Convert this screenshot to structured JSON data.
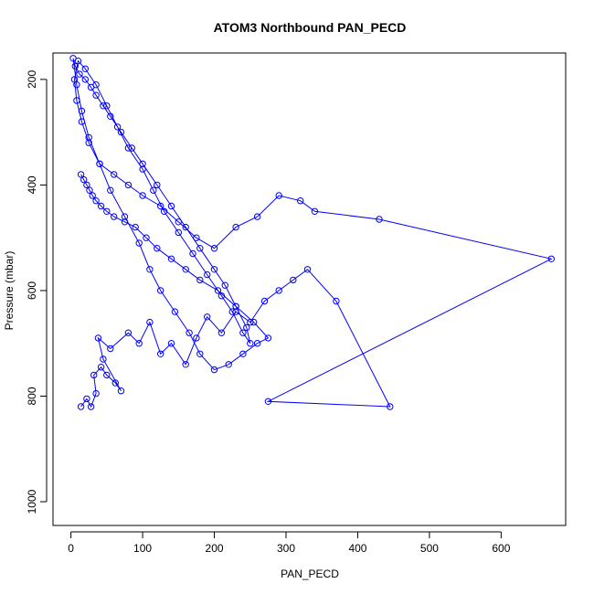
{
  "chart_data": {
    "type": "line",
    "title": "ATOM3 Northbound PAN_PECD",
    "xlabel": "PAN_PECD",
    "ylabel": "Pressure (mbar)",
    "xlim": [
      -25,
      690
    ],
    "ylim": [
      1045,
      150
    ],
    "y_reversed": true,
    "x_ticks": [
      0,
      100,
      200,
      300,
      400,
      500,
      600
    ],
    "y_ticks": [
      200,
      400,
      600,
      800,
      1000
    ],
    "grid": false,
    "legend": "none",
    "color": "#0000ff",
    "markers": "open-circle",
    "series": [
      {
        "x": [
          14,
          22,
          28,
          35,
          32,
          42,
          50,
          62,
          70,
          45,
          38,
          55,
          80,
          95,
          110,
          125,
          140,
          160,
          175,
          190,
          210,
          230,
          250,
          270,
          290,
          310,
          330,
          370,
          445,
          275,
          670,
          430,
          340,
          320,
          290,
          260,
          230,
          200,
          175,
          150,
          125,
          100,
          80,
          60,
          40,
          25,
          15,
          8,
          5,
          10,
          20,
          35,
          50,
          65,
          80,
          100,
          115,
          130,
          150,
          170,
          190,
          210,
          225,
          240,
          250,
          245,
          230,
          215,
          200,
          180,
          160,
          140,
          120,
          100,
          85,
          70,
          55,
          45,
          35,
          28,
          20,
          12,
          6,
          3,
          8,
          15,
          25,
          40,
          55,
          75,
          95,
          110,
          125,
          145,
          165,
          180,
          200,
          220,
          240,
          260,
          275,
          255,
          230,
          205,
          180,
          160,
          140,
          120,
          105,
          90,
          75,
          60,
          50,
          42,
          35,
          30,
          26,
          22,
          18,
          14
        ],
        "y": [
          820,
          805,
          820,
          795,
          760,
          745,
          760,
          775,
          790,
          730,
          690,
          710,
          680,
          700,
          660,
          720,
          700,
          740,
          690,
          650,
          680,
          640,
          660,
          620,
          600,
          580,
          560,
          620,
          820,
          810,
          540,
          465,
          450,
          430,
          420,
          460,
          480,
          520,
          500,
          470,
          440,
          420,
          400,
          380,
          360,
          320,
          280,
          240,
          200,
          165,
          180,
          210,
          250,
          290,
          330,
          370,
          410,
          450,
          490,
          530,
          570,
          610,
          640,
          680,
          700,
          670,
          630,
          590,
          560,
          520,
          480,
          440,
          400,
          360,
          330,
          300,
          270,
          250,
          230,
          215,
          200,
          190,
          175,
          160,
          210,
          260,
          310,
          360,
          410,
          460,
          510,
          560,
          600,
          640,
          680,
          720,
          750,
          740,
          720,
          700,
          690,
          660,
          630,
          600,
          580,
          560,
          540,
          520,
          500,
          480,
          470,
          460,
          450,
          440,
          430,
          420,
          410,
          400,
          390,
          380
        ]
      }
    ]
  }
}
